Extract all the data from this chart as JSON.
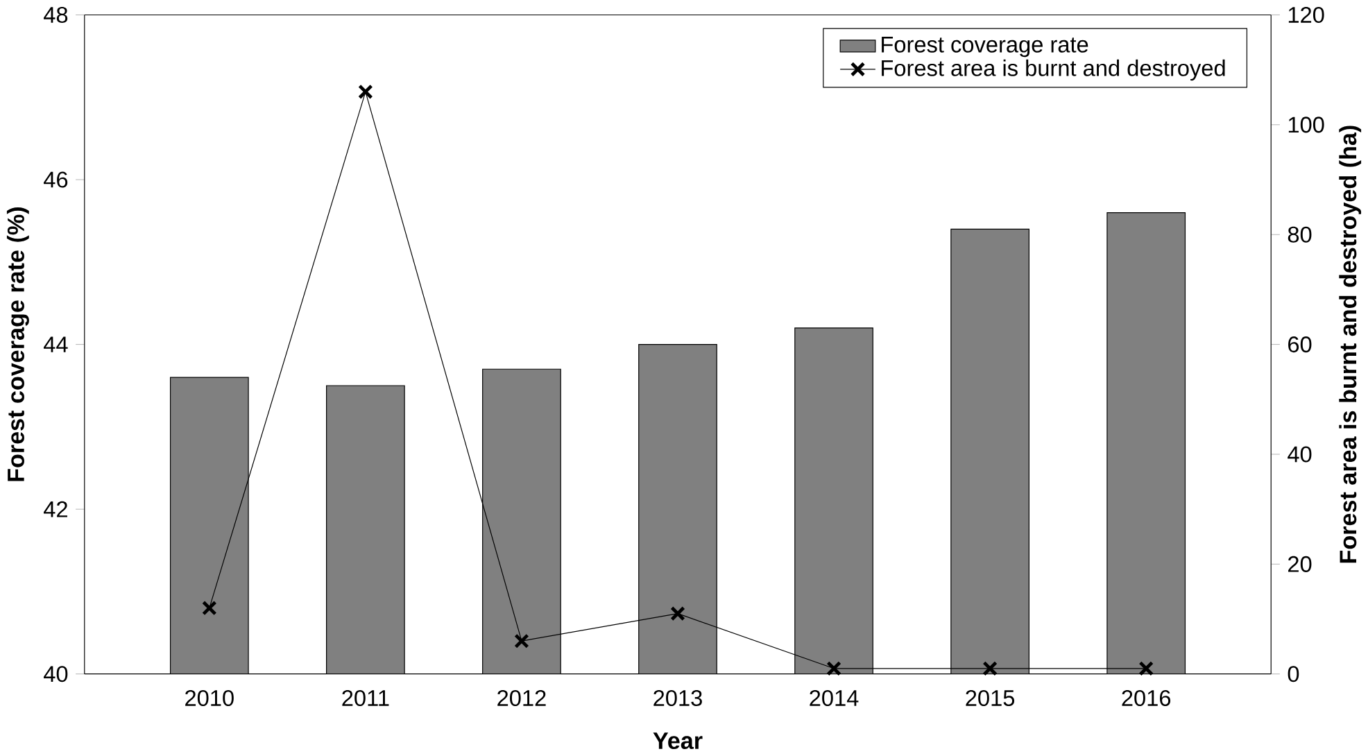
{
  "chart_data": {
    "type": "bar",
    "xlabel": "Year",
    "ylabel": "Forest coverage rate (%)",
    "y2label": "Forest area is burnt and destroyed (ha)",
    "categories": [
      "2010",
      "2011",
      "2012",
      "2013",
      "2014",
      "2015",
      "2016"
    ],
    "series": [
      {
        "name": "Forest coverage rate",
        "color": "#808080",
        "values": [
          43.6,
          43.5,
          43.7,
          44.0,
          44.2,
          45.4,
          45.6
        ]
      },
      {
        "name": "Forest area is burnt and destroyed",
        "type": "line",
        "axis": "y2",
        "color": "#000000",
        "marker": "cross",
        "values": [
          12,
          106,
          6,
          11,
          1,
          1,
          1
        ]
      }
    ],
    "ylim": [
      40,
      48
    ],
    "yticks": [
      40,
      42,
      44,
      46,
      48
    ],
    "y2lim": [
      0,
      120
    ],
    "y2ticks": [
      0,
      20,
      40,
      60,
      80,
      100,
      120
    ],
    "legend": "top right",
    "grid": false
  }
}
